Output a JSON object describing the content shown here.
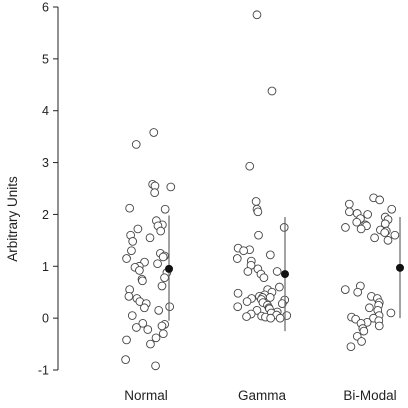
{
  "chart_data": {
    "type": "scatter",
    "ylabel": "Arbitrary Units",
    "ylim": [
      -1,
      6
    ],
    "yticks": [
      -1,
      0,
      1,
      2,
      3,
      4,
      5,
      6
    ],
    "categories": [
      "Normal",
      "Gamma",
      "Bi-Modal"
    ],
    "series": [
      {
        "category": "Normal",
        "values": [
          3.58,
          3.35,
          2.58,
          2.53,
          2.55,
          2.42,
          2.12,
          2.1,
          1.88,
          1.8,
          1.78,
          1.72,
          1.68,
          1.6,
          1.55,
          1.48,
          1.3,
          1.25,
          1.2,
          1.18,
          1.15,
          1.08,
          1.05,
          1.0,
          0.98,
          0.92,
          0.88,
          0.78,
          0.75,
          0.72,
          0.62,
          0.55,
          0.42,
          0.38,
          0.32,
          0.28,
          0.22,
          0.2,
          0.15,
          0.05,
          -0.1,
          -0.12,
          -0.15,
          -0.18,
          -0.22,
          -0.3,
          -0.38,
          -0.42,
          -0.5,
          -0.8,
          -0.92
        ],
        "mean": 0.95,
        "range": [
          -0.05,
          1.98
        ]
      },
      {
        "category": "Gamma",
        "values": [
          5.85,
          4.38,
          2.93,
          2.25,
          2.1,
          2.05,
          1.75,
          1.6,
          1.35,
          1.32,
          1.3,
          1.22,
          1.15,
          1.1,
          1.02,
          0.95,
          0.9,
          0.9,
          0.85,
          0.78,
          0.6,
          0.55,
          0.5,
          0.48,
          0.45,
          0.42,
          0.4,
          0.4,
          0.38,
          0.36,
          0.35,
          0.32,
          0.3,
          0.28,
          0.25,
          0.22,
          0.2,
          0.18,
          0.15,
          0.12,
          0.1,
          0.08,
          0.06,
          0.05,
          0.04,
          0.03,
          0.02,
          0.0,
          0.0
        ],
        "mean": 0.85,
        "range": [
          -0.25,
          1.95
        ]
      },
      {
        "category": "Bi-Modal",
        "values": [
          2.32,
          2.28,
          2.2,
          2.1,
          2.05,
          2.02,
          2.0,
          1.95,
          1.92,
          1.9,
          1.85,
          1.82,
          1.8,
          1.78,
          1.75,
          1.72,
          1.7,
          1.68,
          1.65,
          1.6,
          1.55,
          1.5,
          0.62,
          0.55,
          0.5,
          0.42,
          0.38,
          0.3,
          0.25,
          0.2,
          0.15,
          0.1,
          0.05,
          0.02,
          0.0,
          -0.02,
          -0.05,
          -0.08,
          -0.1,
          -0.15,
          -0.2,
          -0.25,
          -0.35,
          -0.45,
          -0.55
        ],
        "mean": 0.97,
        "range": [
          0.0,
          1.95
        ]
      }
    ],
    "grid": false,
    "legend": "none"
  }
}
